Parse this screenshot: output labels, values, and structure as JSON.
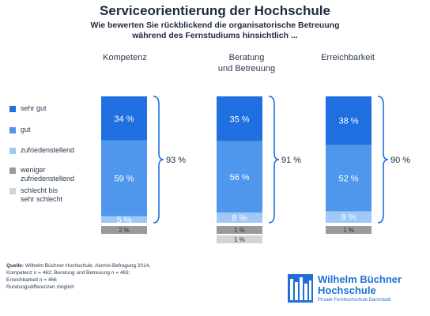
{
  "title": "Serviceorientierung der Hochschule",
  "subtitle_line1": "Wie bewerten Sie rückblickend die organisatorische Betreuung",
  "subtitle_line2": "während des Fernstudiums hinsichtlich ...",
  "colors": {
    "sehr_gut": "#1f6fe0",
    "gut": "#4f97ec",
    "zufriedenstellend": "#9ec8f6",
    "weniger": "#9a9a9a",
    "schlecht": "#d4d4d4",
    "brace": "#1f6fe0"
  },
  "chart_data": {
    "type": "bar",
    "stacked": true,
    "categories": [
      "Kompetenz",
      "Beratung und Betreuung",
      "Erreichbarkeit"
    ],
    "category_label_lines": [
      [
        "Kompetenz"
      ],
      [
        "Beratung",
        "und Betreuung"
      ],
      [
        "Erreichbarkeit"
      ]
    ],
    "series": [
      {
        "name": "sehr gut",
        "values": [
          34,
          35,
          38
        ]
      },
      {
        "name": "gut",
        "values": [
          59,
          56,
          52
        ]
      },
      {
        "name": "zufriedenstellend",
        "values": [
          5,
          8,
          9
        ]
      },
      {
        "name": "weniger zufriedenstellend",
        "values": [
          2,
          1,
          1
        ]
      },
      {
        "name": "schlecht bis sehr schlecht",
        "values": [
          0,
          1,
          0
        ]
      }
    ],
    "value_labels": [
      [
        "34 %",
        "59 %",
        "5 %",
        "2 %",
        ""
      ],
      [
        "35 %",
        "56 %",
        "8 %",
        "1 %",
        "1 %"
      ],
      [
        "38 %",
        "52 %",
        "9 %",
        "1 %",
        ""
      ]
    ],
    "brace_totals": [
      "93 %",
      "91 %",
      "90 %"
    ]
  },
  "legend": [
    {
      "label_lines": [
        "sehr gut"
      ]
    },
    {
      "label_lines": [
        "gut"
      ]
    },
    {
      "label_lines": [
        "zufriedenstellend"
      ]
    },
    {
      "label_lines": [
        "weniger",
        "zufriedenstellend"
      ]
    },
    {
      "label_lines": [
        "schlecht bis",
        "sehr schlecht"
      ]
    }
  ],
  "source": {
    "label": "Quelle:",
    "line1": "Wilhelm Büchner Hochschule, Alumni-Befragung 2014,",
    "line2": "Kompetenz n = 462; Beratung und Betreuung n = 463;",
    "line3": "Erreichbarkeit n = 466",
    "line4": "Rundungsdifferenzen möglich"
  },
  "logo": {
    "name_line1": "Wilhelm Büchner",
    "name_line2": "Hochschule",
    "tagline": "Private Fernhochschule Darmstadt"
  }
}
